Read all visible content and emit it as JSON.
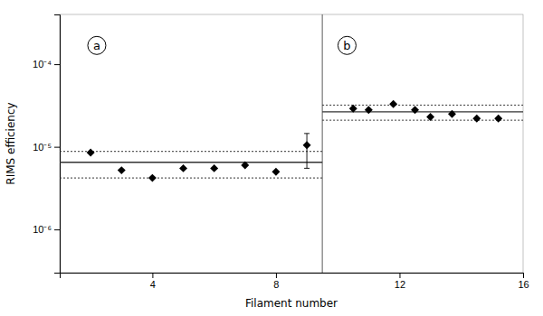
{
  "chart_data": {
    "type": "scatter",
    "log": "y",
    "xlabel": "Filament number",
    "ylabel": "RIMS efficiency",
    "xlim": [
      1,
      16
    ],
    "ylim": [
      3e-07,
      0.0004
    ],
    "xticks": [
      4,
      8,
      12,
      16
    ],
    "yticks": [
      {
        "value": 1e-06,
        "label": "10⁻⁶"
      },
      {
        "value": 1e-05,
        "label": "10⁻⁵"
      },
      {
        "value": 0.0001,
        "label": "10⁻⁴"
      }
    ],
    "grid": false,
    "series": [
      {
        "x": [
          2,
          3,
          4,
          5,
          6,
          7,
          8
        ],
        "values": [
          8.5e-06,
          5.2e-06,
          4.2e-06,
          5.5e-06,
          5.5e-06,
          6e-06,
          5e-06
        ],
        "marker": "diamond",
        "color": "#000000"
      },
      {
        "x": [
          9
        ],
        "values": [
          1.05e-05
        ],
        "error_low": [
          5.5e-06
        ],
        "error_high": [
          1.45e-05
        ],
        "marker": "diamond",
        "color": "#000000"
      },
      {
        "x": [
          10.5,
          11,
          11.8,
          12.5,
          13.0,
          13.7,
          14.5,
          15.2
        ],
        "values": [
          2.9e-05,
          2.8e-05,
          3.3e-05,
          2.8e-05,
          2.3e-05,
          2.5e-05,
          2.2e-05,
          2.2e-05
        ],
        "marker": "diamond",
        "color": "#000000"
      }
    ],
    "hlines": [
      {
        "value": 6.5e-06,
        "x": [
          1,
          9.5
        ],
        "line_style": "solid"
      },
      {
        "value": 8.8e-06,
        "x": [
          1,
          9.5
        ],
        "line_style": "dotted"
      },
      {
        "value": 4.2e-06,
        "x": [
          1,
          9.5
        ],
        "line_style": "dotted"
      },
      {
        "value": 2.65e-05,
        "x": [
          9.5,
          16
        ],
        "line_style": "solid"
      },
      {
        "value": 3.2e-05,
        "x": [
          9.5,
          16
        ],
        "line_style": "dotted"
      },
      {
        "value": 2.1e-05,
        "x": [
          9.5,
          16
        ],
        "line_style": "dotted"
      }
    ],
    "vline": 9.5,
    "annotations": [
      {
        "text": "a"
      },
      {
        "text": "b"
      }
    ]
  }
}
